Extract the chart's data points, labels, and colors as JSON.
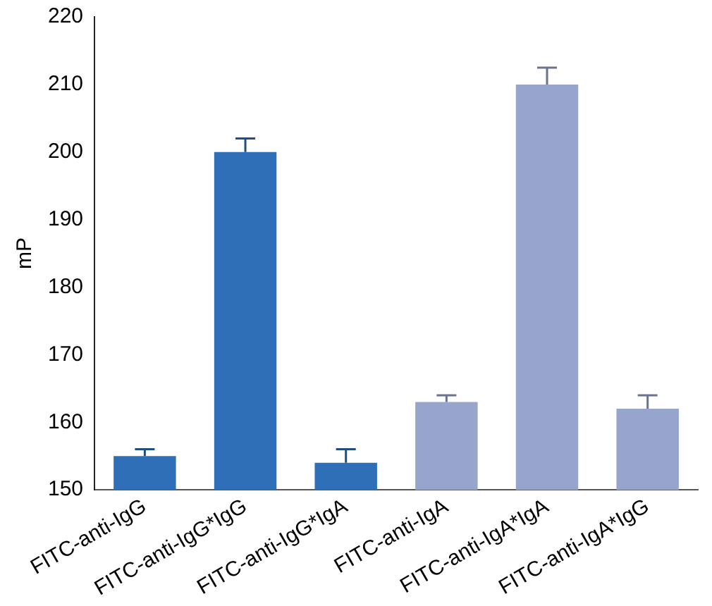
{
  "chart_data": {
    "type": "bar",
    "ylabel": "mP",
    "categories": [
      "FITC-anti-IgG",
      "FITC-anti-IgG*IgG",
      "FITC-anti-IgG*IgA",
      "FITC-anti-IgA",
      "FITC-anti-IgA*IgA",
      "FITC-anti-IgA*IgG"
    ],
    "values": [
      155,
      200,
      154,
      163,
      210,
      162
    ],
    "errors": [
      [
        155,
        156
      ],
      [
        200,
        202
      ],
      [
        154,
        156
      ],
      [
        163,
        164
      ],
      [
        210,
        212.5
      ],
      [
        162,
        164
      ]
    ],
    "colors": [
      "#2f6fb7",
      "#2f6fb7",
      "#2f6fb7",
      "#97a5cc",
      "#97a5cc",
      "#97a5cc"
    ],
    "ylim": [
      150,
      220
    ],
    "yticks": [
      150,
      160,
      170,
      180,
      190,
      200,
      210,
      220
    ],
    "grid": false,
    "legend": false
  }
}
